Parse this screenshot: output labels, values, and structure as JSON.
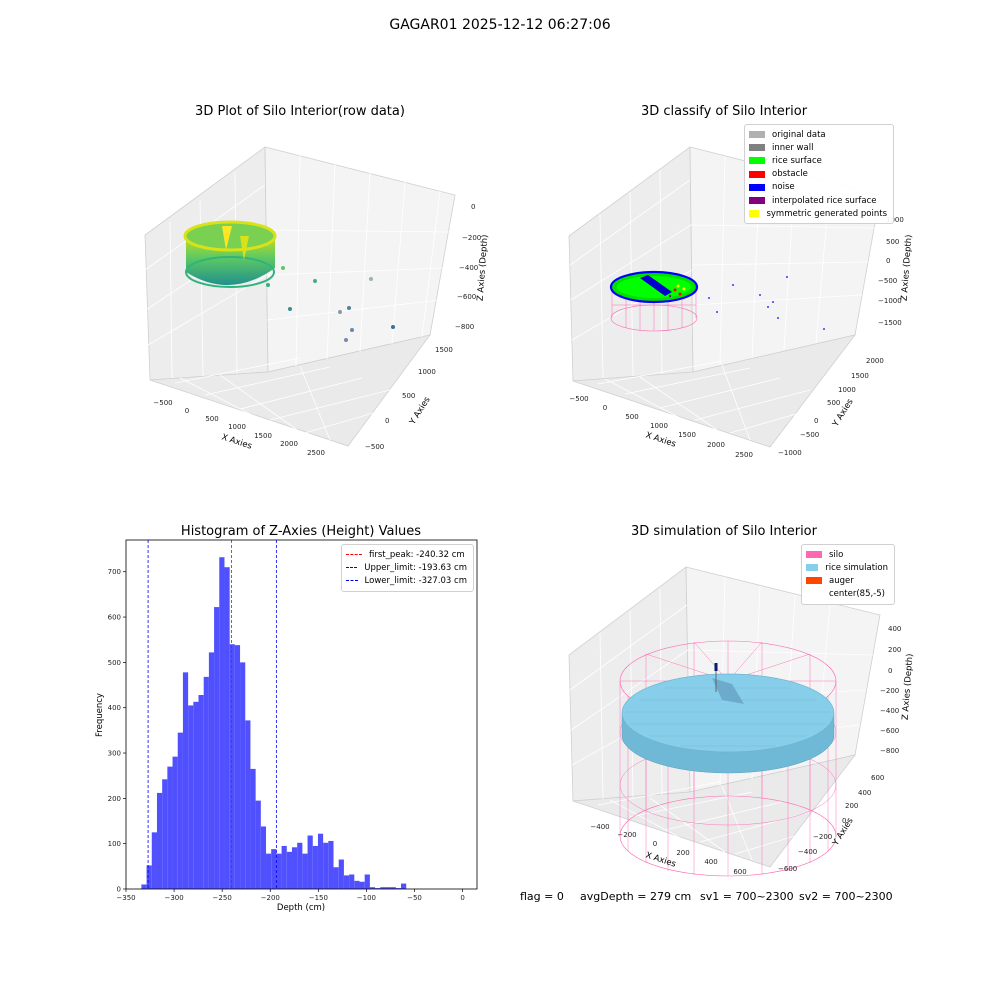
{
  "figure": {
    "suptitle": "GAGAR01 2025-12-12 06:27:06"
  },
  "footer": {
    "flag": "flag = 0",
    "avg": "avgDepth = 279 cm",
    "sv1": "sv1 = 700~2300",
    "sv2": "sv2 = 700~2300"
  },
  "chart_data": [
    {
      "type": "scatter",
      "projection": "3d",
      "title": "3D Plot of Silo Interior(row data)",
      "xlabel": "X Axies",
      "ylabel": "Y Axies",
      "zlabel": "Z Axies (Depth)",
      "xticks": [
        "−500",
        "0",
        "500",
        "1000",
        "1500",
        "2000",
        "2500"
      ],
      "yticks": [
        "−500",
        "0",
        "500",
        "1000",
        "1500"
      ],
      "zticks": [
        "0",
        "−200",
        "−400",
        "−600",
        "−800"
      ],
      "colormap": "viridis",
      "grid": true,
      "outlier_points": [
        {
          "x": 700,
          "y": 200,
          "z": -480
        },
        {
          "x": 900,
          "y": 150,
          "z": -540
        },
        {
          "x": 1300,
          "y": 1300,
          "z": -500
        },
        {
          "x": 800,
          "y": -100,
          "z": -620
        },
        {
          "x": 1200,
          "y": 100,
          "z": -680
        },
        {
          "x": 1250,
          "y": -200,
          "z": -720
        },
        {
          "x": 1600,
          "y": 200,
          "z": -760
        },
        {
          "x": 1100,
          "y": -400,
          "z": -800
        }
      ]
    },
    {
      "type": "scatter",
      "projection": "3d",
      "title": "3D classify of Silo Interior",
      "xlabel": "X Axies",
      "ylabel": "Y Axies",
      "zlabel": "Z Axies (Depth)",
      "xticks": [
        "−500",
        "0",
        "500",
        "1000",
        "1500",
        "2000",
        "2500"
      ],
      "yticks": [
        "−1000",
        "−500",
        "0",
        "500",
        "1000",
        "1500",
        "2000"
      ],
      "zticks": [
        "1000",
        "500",
        "0",
        "−500",
        "−1000",
        "−1500"
      ],
      "legend_position": "top-right",
      "legend": [
        {
          "label": "original data",
          "color": "#b0b0b0"
        },
        {
          "label": "inner wall",
          "color": "#808080"
        },
        {
          "label": "rice surface",
          "color": "#00ff00"
        },
        {
          "label": "obstacle",
          "color": "#ff0000"
        },
        {
          "label": "noise",
          "color": "#0000ff"
        },
        {
          "label": "interpolated rice surface",
          "color": "#800080"
        },
        {
          "label": "symmetric generated points",
          "color": "#ffff00"
        }
      ],
      "grid": true
    },
    {
      "type": "bar",
      "title": "Histogram of Z-Axies (Height) Values",
      "xlabel": "Depth (cm)",
      "ylabel": "Frequency",
      "xlim": [
        -350,
        15
      ],
      "ylim": [
        0,
        770
      ],
      "xticks": [
        -350,
        -300,
        -250,
        -200,
        -150,
        -100,
        -50,
        0
      ],
      "yticks": [
        0,
        100,
        200,
        300,
        400,
        500,
        600,
        700
      ],
      "bin_start": -334,
      "bin_width": 5.4,
      "bar_color": "#5050ff",
      "values": [
        10,
        52,
        125,
        212,
        242,
        270,
        292,
        345,
        478,
        405,
        413,
        428,
        468,
        522,
        622,
        732,
        710,
        540,
        538,
        500,
        372,
        265,
        195,
        138,
        78,
        88,
        78,
        95,
        82,
        92,
        102,
        78,
        118,
        95,
        122,
        102,
        106,
        48,
        65,
        30,
        32,
        18,
        16,
        32,
        4,
        2,
        4,
        4,
        4,
        2,
        12
      ],
      "vlines": [
        {
          "x": -240.32,
          "label": "first_peak: -240.32 cm",
          "color": "#ff0000"
        },
        {
          "x": -193.63,
          "label": "Upper_limit: -193.63 cm",
          "color": "#0000ff"
        },
        {
          "x": -327.03,
          "label": "Lower_limit: -327.03 cm",
          "color": "#0000ff"
        }
      ],
      "legend_position": "top-right"
    },
    {
      "type": "scatter",
      "projection": "3d",
      "title": "3D simulation of Silo Interior",
      "xlabel": "X Axies",
      "ylabel": "Y Axies",
      "zlabel": "Z Axies (Depth)",
      "xticks": [
        "−400",
        "−200",
        "0",
        "200",
        "400",
        "600"
      ],
      "yticks": [
        "−600",
        "−400",
        "−200",
        "0",
        "200",
        "400",
        "600"
      ],
      "zticks": [
        "400",
        "200",
        "0",
        "−200",
        "−400",
        "−600",
        "−800"
      ],
      "legend_position": "top-right",
      "legend": [
        {
          "label": "silo",
          "color": "#ff69b4"
        },
        {
          "label": "rice simulation",
          "color": "#87ceeb"
        },
        {
          "label": "auger",
          "color": "#ff4500"
        },
        {
          "label": "center(85,-5)",
          "color": "#ffffff"
        }
      ],
      "grid": true
    }
  ]
}
